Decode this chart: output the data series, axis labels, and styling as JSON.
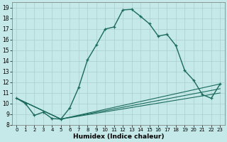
{
  "xlabel": "Humidex (Indice chaleur)",
  "background_color": "#c5e8e8",
  "grid_color": "#aacece",
  "line_color": "#1a6b5a",
  "xlim": [
    -0.5,
    23.5
  ],
  "ylim": [
    8,
    19.5
  ],
  "xticks": [
    0,
    1,
    2,
    3,
    4,
    5,
    6,
    7,
    8,
    9,
    10,
    11,
    12,
    13,
    14,
    15,
    16,
    17,
    18,
    19,
    20,
    21,
    22,
    23
  ],
  "yticks": [
    8,
    9,
    10,
    11,
    12,
    13,
    14,
    15,
    16,
    17,
    18,
    19
  ],
  "main_curve_x": [
    0,
    1,
    2,
    3,
    4,
    5,
    6,
    7,
    8,
    9,
    10,
    11,
    12,
    13,
    14,
    15,
    16,
    17,
    18,
    19,
    20,
    21,
    22,
    23
  ],
  "main_curve_y": [
    10.5,
    10.0,
    8.9,
    9.2,
    8.6,
    8.55,
    9.6,
    11.5,
    14.1,
    15.5,
    17.0,
    17.2,
    18.8,
    18.85,
    18.2,
    17.5,
    16.35,
    16.5,
    15.45,
    13.1,
    12.2,
    10.85,
    10.5,
    11.85
  ],
  "flat_lines": [
    {
      "x": [
        0,
        5,
        23
      ],
      "y": [
        10.5,
        8.55,
        11.85
      ]
    },
    {
      "x": [
        0,
        5,
        23
      ],
      "y": [
        10.5,
        8.55,
        11.4
      ]
    },
    {
      "x": [
        0,
        5,
        23
      ],
      "y": [
        10.5,
        8.55,
        11.0
      ]
    }
  ],
  "tick_fontsize": 5.5,
  "xlabel_fontsize": 6.5
}
